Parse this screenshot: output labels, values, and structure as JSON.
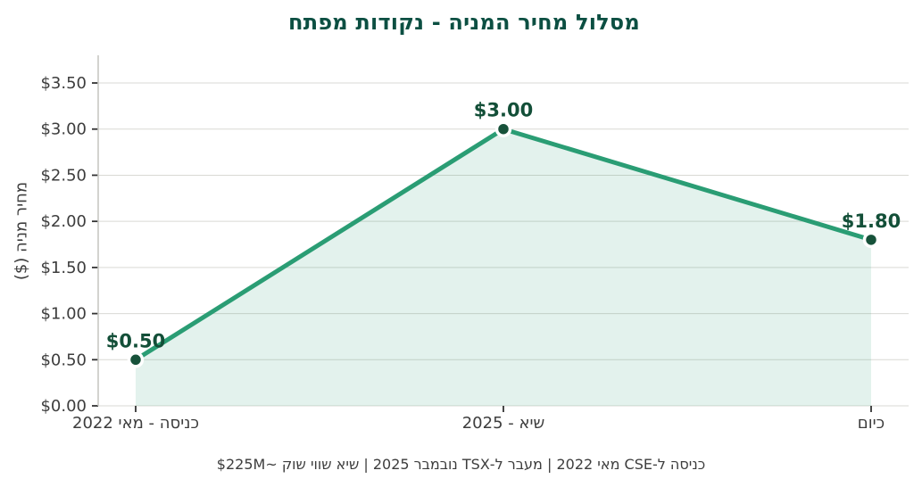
{
  "title": "מסלול מחיר המניה - נקודות מפתח",
  "footer": "כניסה ל-CSE מאי 2022 | מעבר ל-TSX נובמבר 2025 | שיא שווי שוק ~$225M",
  "chart_data": {
    "type": "line",
    "title": "מסלול מחיר המניה - נקודות מפתח",
    "categories": [
      "כניסה - מאי 2022",
      "שיא - 2025",
      "כיום"
    ],
    "values": [
      0.5,
      3.0,
      1.8
    ],
    "point_labels": [
      "$0.50",
      "$3.00",
      "$1.80"
    ],
    "xlabel": "",
    "ylabel": "מחיר מניה ($)",
    "ylim": [
      0,
      3.8
    ],
    "yticks": [
      {
        "value": 0.0,
        "label": "$0.00"
      },
      {
        "value": 0.5,
        "label": "$0.50"
      },
      {
        "value": 1.0,
        "label": "$1.00"
      },
      {
        "value": 1.5,
        "label": "$1.50"
      },
      {
        "value": 2.0,
        "label": "$2.00"
      },
      {
        "value": 2.5,
        "label": "$2.50"
      },
      {
        "value": 3.0,
        "label": "$3.00"
      },
      {
        "value": 3.5,
        "label": "$3.50"
      }
    ],
    "grid": true,
    "area_fill": true,
    "legend_position": "none",
    "caption": "כניסה ל-CSE מאי 2022 | מעבר ל-TSX נובמבר 2025 | שיא שווי שוק ~$225M"
  },
  "colors": {
    "background": "#ffffff",
    "line": "#2a9d74",
    "area_fill": "#2a9d74",
    "area_opacity": 0.13,
    "marker": "#17523a",
    "marker_ring": "#ffffff",
    "point_label": "#134f38",
    "title": "#0c4f42",
    "tick_text": "#3d3d3d",
    "grid": "#d9d9d4",
    "spine": "#c8c8c3",
    "tick_mark": "#333333"
  }
}
